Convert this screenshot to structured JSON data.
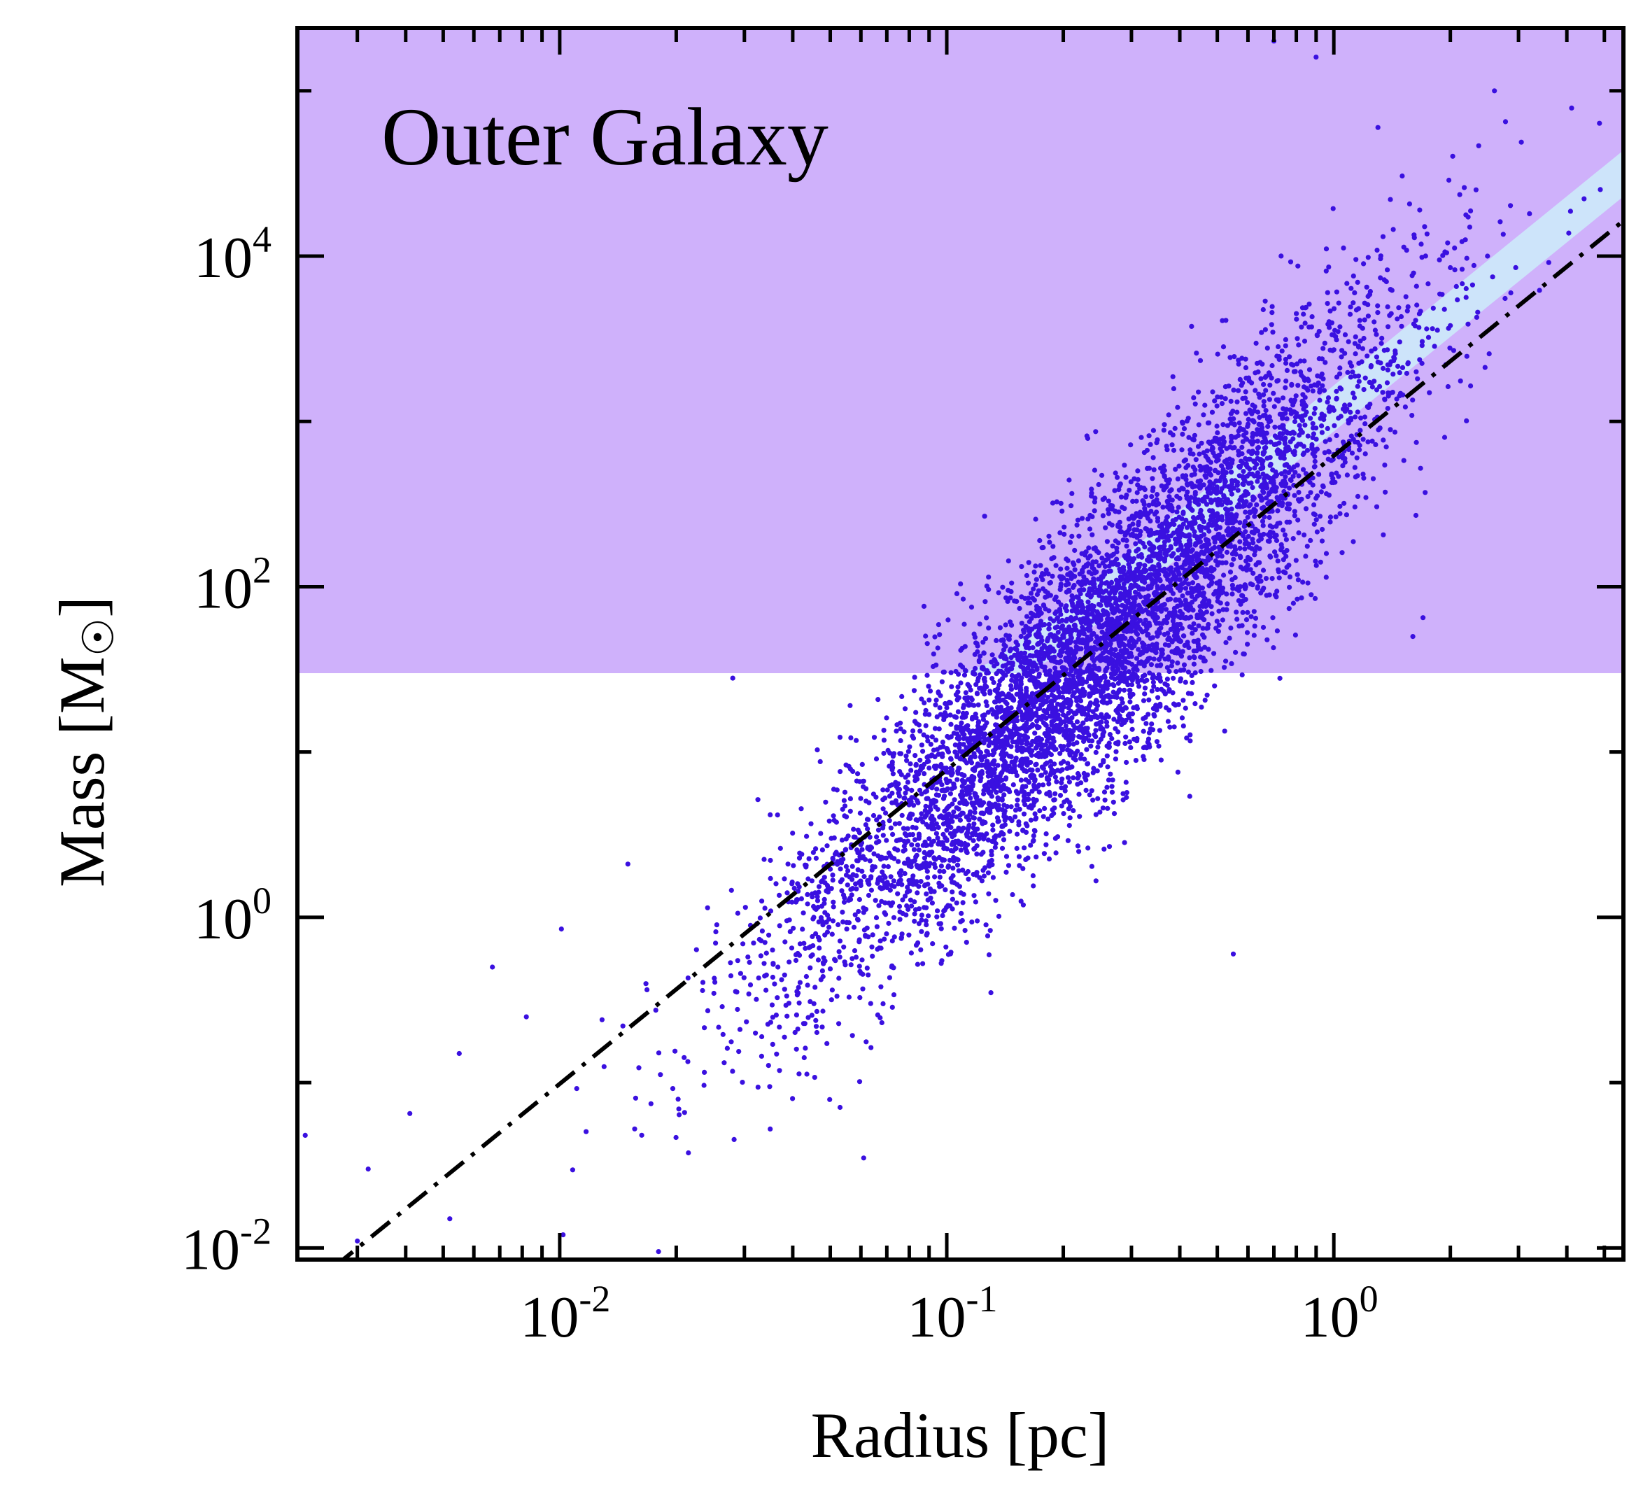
{
  "chart_data": {
    "type": "scatter",
    "title": "Outer Galaxy",
    "xlabel": "Radius [pc]",
    "ylabel_text": "Mass [M",
    "ylabel_sun": "☉",
    "ylabel_close": "]",
    "xscale": "log",
    "yscale": "log",
    "xlim": [
      0.0021,
      5.6
    ],
    "ylim": [
      0.0085,
      240000
    ],
    "x_ticks": [
      {
        "base": "10",
        "exp": "-2",
        "value": 0.01
      },
      {
        "base": "10",
        "exp": "-1",
        "value": 0.1
      },
      {
        "base": "10",
        "exp": "0",
        "value": 1
      }
    ],
    "y_ticks": [
      {
        "base": "10",
        "exp": "-2",
        "value": 0.01
      },
      {
        "base": "10",
        "exp": "0",
        "value": 1
      },
      {
        "base": "10",
        "exp": "2",
        "value": 100
      },
      {
        "base": "10",
        "exp": "4",
        "value": 10000
      }
    ],
    "grid": false,
    "legend": "none",
    "colors": {
      "points": "#3a10e0",
      "region_upper": "#cfb1fb",
      "region_band": "#cde4fa",
      "reference_line": "#000000"
    },
    "shaded_regions": [
      {
        "name": "",
        "mass_above": 30,
        "color": "#cfb1fb"
      },
      {
        "name": "",
        "mass_above_power_law": {
          "norm": 870,
          "slope": 1.9
        },
        "color": "#cde4fa"
      }
    ],
    "reference_line": {
      "style": "dash-dot",
      "norm": 620,
      "slope": 1.9
    },
    "scatter_summary": {
      "n_points": 6200,
      "log_radius_mean": -0.62,
      "log_radius_sd": 0.39,
      "log_mass_slope": 2.3,
      "log_mass_intercept": 3.05,
      "log_mass_scatter": 0.42
    },
    "outlier_points": [
      {
        "x": 0.0022,
        "y": 0.048
      },
      {
        "x": 0.003,
        "y": 0.011
      },
      {
        "x": 0.0032,
        "y": 0.03
      },
      {
        "x": 0.0041,
        "y": 0.065
      },
      {
        "x": 0.0052,
        "y": 0.015
      },
      {
        "x": 0.0055,
        "y": 0.15
      },
      {
        "x": 0.0067,
        "y": 0.5
      },
      {
        "x": 0.0082,
        "y": 0.25
      },
      {
        "x": 0.0101,
        "y": 0.85
      },
      {
        "x": 0.0102,
        "y": 0.012
      },
      {
        "x": 0.015,
        "y": 2.1
      },
      {
        "x": 0.018,
        "y": 0.0095
      },
      {
        "x": 0.028,
        "y": 28
      },
      {
        "x": 0.061,
        "y": 0.035
      },
      {
        "x": 0.13,
        "y": 0.35
      },
      {
        "x": 0.55,
        "y": 0.6
      },
      {
        "x": 1.6,
        "y": 50
      },
      {
        "x": 1.7,
        "y": 65
      },
      {
        "x": 2.6,
        "y": 100000
      },
      {
        "x": 1.3,
        "y": 60000
      },
      {
        "x": 0.9,
        "y": 160000
      },
      {
        "x": 0.7,
        "y": 200000
      },
      {
        "x": 2.0,
        "y": 3800
      },
      {
        "x": 1.4,
        "y": 22000
      }
    ]
  }
}
